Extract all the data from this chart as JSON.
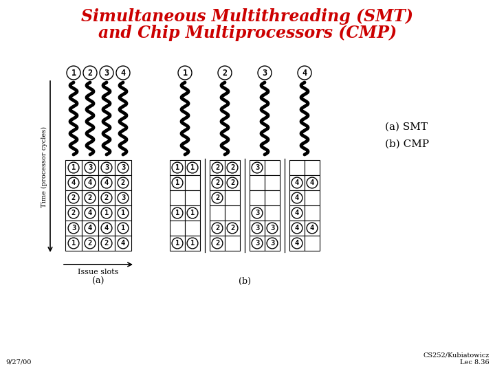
{
  "title_line1": "Simultaneous Multithreading (SMT)",
  "title_line2": "and Chip Multiprocessors (CMP)",
  "title_color": "#cc0000",
  "bg_color": "#ffffff",
  "ylabel": "Time (processor cycles)",
  "xlabel": "Issue slots",
  "label_a": "(a)",
  "label_b": "(b)",
  "smt_label": "(a) SMT",
  "cmp_label": "(b) CMP",
  "footnote": "CS252/Kubiatowicz\nLec 8.36",
  "date": "9/27/00",
  "smt_grid": [
    [
      "1",
      "3",
      "3",
      "3"
    ],
    [
      "4",
      "4",
      "4",
      "2"
    ],
    [
      "2",
      "2",
      "2",
      "3"
    ],
    [
      "2",
      "4",
      "1",
      "1"
    ],
    [
      "3",
      "4",
      "4",
      "1"
    ],
    [
      "1",
      "2",
      "2",
      "4"
    ]
  ],
  "cmp_grid_1": [
    [
      "1",
      "1"
    ],
    [
      "1",
      ""
    ],
    [
      "",
      ""
    ],
    [
      "1",
      "1"
    ],
    [
      "",
      ""
    ],
    [
      "1",
      "1"
    ]
  ],
  "cmp_grid_2": [
    [
      "2",
      "2"
    ],
    [
      "2",
      "2"
    ],
    [
      "2",
      ""
    ],
    [
      "",
      ""
    ],
    [
      "2",
      "2"
    ],
    [
      "2",
      ""
    ]
  ],
  "cmp_grid_3": [
    [
      "3",
      ""
    ],
    [
      "",
      ""
    ],
    [
      "",
      ""
    ],
    [
      "3",
      ""
    ],
    [
      "3",
      "3"
    ],
    [
      "3",
      "3"
    ]
  ],
  "cmp_grid_4": [
    [
      "",
      ""
    ],
    [
      "4",
      "4"
    ],
    [
      "4",
      ""
    ],
    [
      "4",
      ""
    ],
    [
      "4",
      "4"
    ],
    [
      "4",
      ""
    ]
  ],
  "thread_header_smt": [
    "1",
    "2",
    "3",
    "4"
  ],
  "thread_header_cmp": [
    "1",
    "2",
    "3",
    "4"
  ]
}
